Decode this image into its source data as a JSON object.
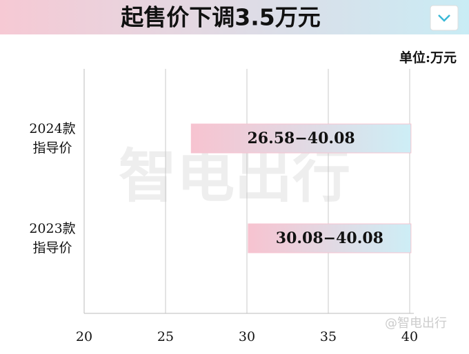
{
  "chart_data": {
    "type": "range-bar",
    "title": "起售价下调3.5万元",
    "unit": "单位:万元",
    "categories": [
      [
        "2024款",
        "指导价"
      ],
      [
        "2023款",
        "指导价"
      ]
    ],
    "ranges": [
      {
        "low": 26.58,
        "high": 40.08,
        "label": "26.58−40.08"
      },
      {
        "low": 30.08,
        "high": 40.08,
        "label": "30.08−40.08"
      }
    ],
    "colors": [
      "#f7c3d0",
      "#cdeef6"
    ],
    "xlim": [
      20,
      40
    ],
    "xticks": [
      20,
      25,
      30,
      35,
      40
    ],
    "grid": true
  },
  "watermark": "智电出行",
  "credit": "@智电出行"
}
